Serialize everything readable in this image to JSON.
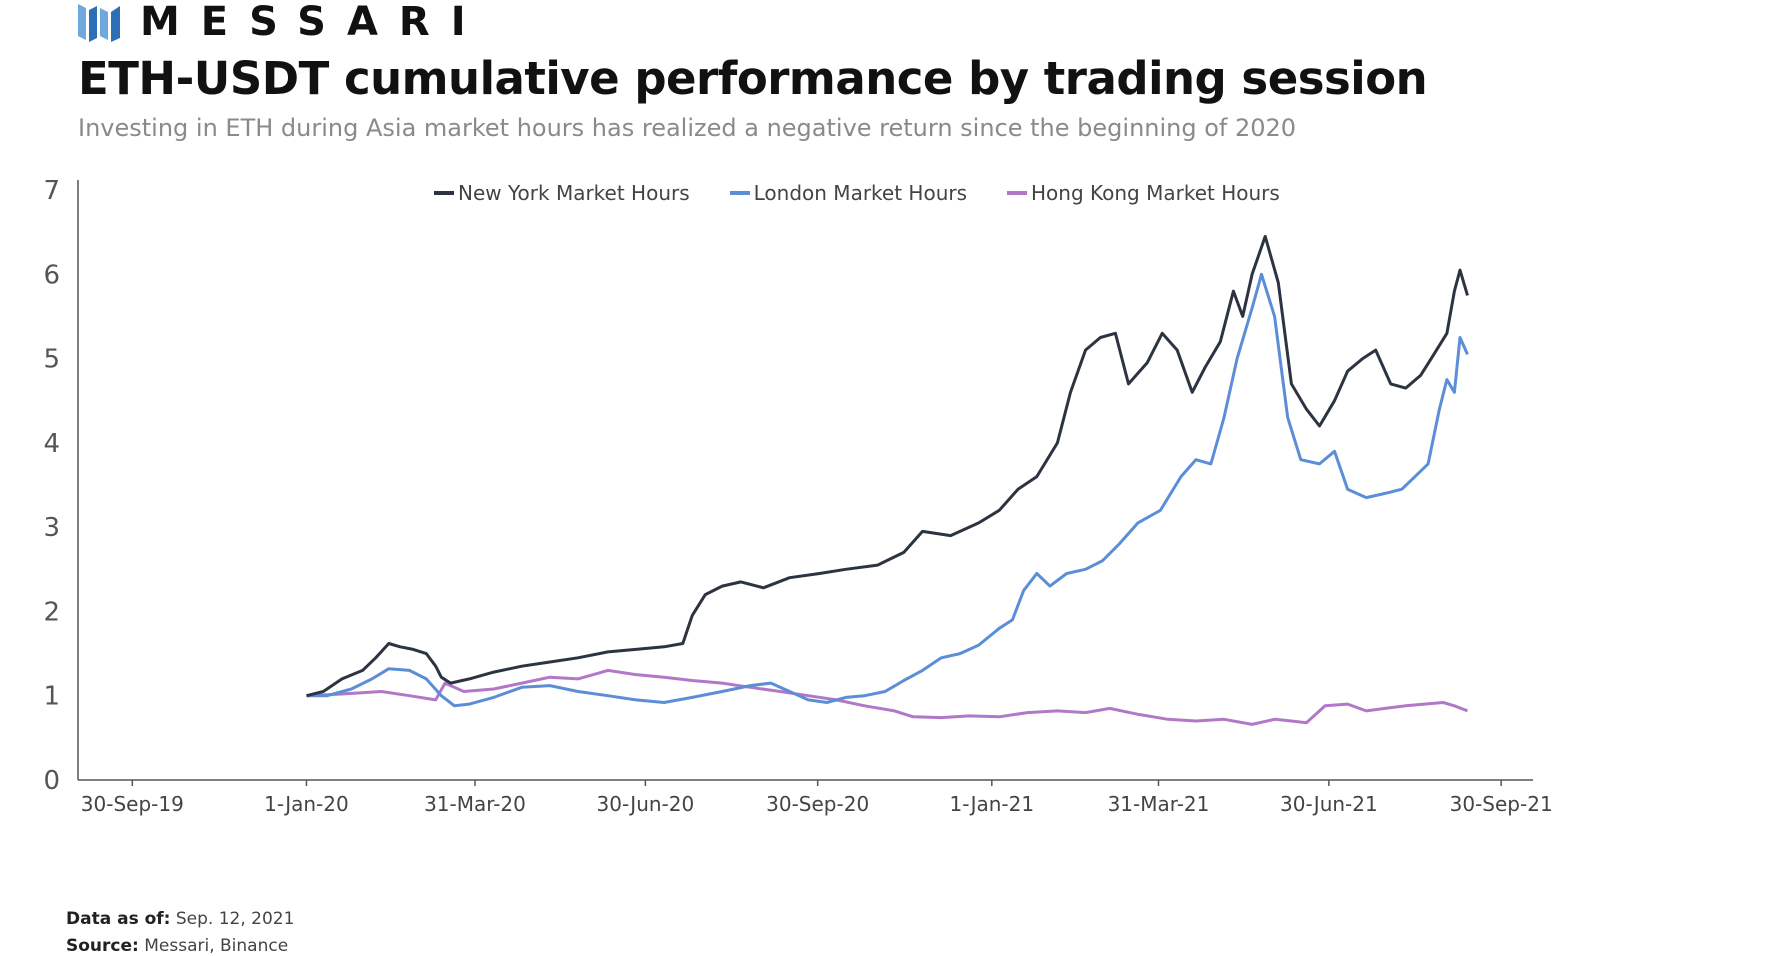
{
  "brand": {
    "name": "MESSARI",
    "colors": {
      "logo_dark": "#2c6fb7",
      "logo_light": "#6fa8dc"
    }
  },
  "header": {
    "title": "ETH-USDT cumulative performance by trading session",
    "subtitle": "Investing in ETH during Asia market hours has realized a negative return since the beginning of 2020"
  },
  "footer": {
    "data_as_of_label": "Data as of:",
    "data_as_of_value": "Sep. 12, 2021",
    "source_label": "Source:",
    "source_value": "Messari, Binance"
  },
  "chart_data": {
    "type": "line",
    "title": "",
    "xlabel": "",
    "ylabel": "",
    "ylim": [
      0,
      7
    ],
    "yticks": [
      "0",
      "1",
      "2",
      "3",
      "4",
      "5",
      "6",
      "7"
    ],
    "xlim": [
      "2019-09-01",
      "2021-10-17"
    ],
    "xticks": [
      {
        "label": "30-Sep-19",
        "date": "2019-09-30"
      },
      {
        "label": "1-Jan-20",
        "date": "2020-01-01"
      },
      {
        "label": "31-Mar-20",
        "date": "2020-03-31"
      },
      {
        "label": "30-Jun-20",
        "date": "2020-06-30"
      },
      {
        "label": "30-Sep-20",
        "date": "2020-09-30"
      },
      {
        "label": "1-Jan-21",
        "date": "2021-01-01"
      },
      {
        "label": "31-Mar-21",
        "date": "2021-03-31"
      },
      {
        "label": "30-Jun-21",
        "date": "2021-06-30"
      },
      {
        "label": "30-Sep-21",
        "date": "2021-09-30"
      }
    ],
    "grid": false,
    "legend_position": "top",
    "series": [
      {
        "name": "New York Market Hours",
        "color": "#2b3440",
        "points": [
          [
            "2020-01-01",
            1.0
          ],
          [
            "2020-01-10",
            1.05
          ],
          [
            "2020-01-20",
            1.2
          ],
          [
            "2020-01-31",
            1.3
          ],
          [
            "2020-02-07",
            1.45
          ],
          [
            "2020-02-14",
            1.62
          ],
          [
            "2020-02-20",
            1.58
          ],
          [
            "2020-02-27",
            1.55
          ],
          [
            "2020-03-05",
            1.5
          ],
          [
            "2020-03-10",
            1.35
          ],
          [
            "2020-03-13",
            1.22
          ],
          [
            "2020-03-18",
            1.15
          ],
          [
            "2020-03-28",
            1.2
          ],
          [
            "2020-04-10",
            1.28
          ],
          [
            "2020-04-25",
            1.35
          ],
          [
            "2020-05-10",
            1.4
          ],
          [
            "2020-05-25",
            1.45
          ],
          [
            "2020-06-10",
            1.52
          ],
          [
            "2020-06-25",
            1.55
          ],
          [
            "2020-07-10",
            1.58
          ],
          [
            "2020-07-20",
            1.62
          ],
          [
            "2020-07-25",
            1.95
          ],
          [
            "2020-08-01",
            2.2
          ],
          [
            "2020-08-10",
            2.3
          ],
          [
            "2020-08-20",
            2.35
          ],
          [
            "2020-09-01",
            2.28
          ],
          [
            "2020-09-15",
            2.4
          ],
          [
            "2020-10-01",
            2.45
          ],
          [
            "2020-10-15",
            2.5
          ],
          [
            "2020-11-01",
            2.55
          ],
          [
            "2020-11-15",
            2.7
          ],
          [
            "2020-11-25",
            2.95
          ],
          [
            "2020-12-10",
            2.9
          ],
          [
            "2020-12-25",
            3.05
          ],
          [
            "2021-01-05",
            3.2
          ],
          [
            "2021-01-15",
            3.45
          ],
          [
            "2021-01-25",
            3.6
          ],
          [
            "2021-02-05",
            4.0
          ],
          [
            "2021-02-12",
            4.6
          ],
          [
            "2021-02-20",
            5.1
          ],
          [
            "2021-02-28",
            5.25
          ],
          [
            "2021-03-08",
            5.3
          ],
          [
            "2021-03-15",
            4.7
          ],
          [
            "2021-03-25",
            4.95
          ],
          [
            "2021-04-02",
            5.3
          ],
          [
            "2021-04-10",
            5.1
          ],
          [
            "2021-04-18",
            4.6
          ],
          [
            "2021-04-25",
            4.9
          ],
          [
            "2021-05-03",
            5.2
          ],
          [
            "2021-05-10",
            5.8
          ],
          [
            "2021-05-15",
            5.5
          ],
          [
            "2021-05-20",
            6.0
          ],
          [
            "2021-05-27",
            6.45
          ],
          [
            "2021-06-03",
            5.9
          ],
          [
            "2021-06-10",
            4.7
          ],
          [
            "2021-06-18",
            4.4
          ],
          [
            "2021-06-25",
            4.2
          ],
          [
            "2021-07-03",
            4.5
          ],
          [
            "2021-07-10",
            4.85
          ],
          [
            "2021-07-18",
            5.0
          ],
          [
            "2021-07-25",
            5.1
          ],
          [
            "2021-08-02",
            4.7
          ],
          [
            "2021-08-10",
            4.65
          ],
          [
            "2021-08-18",
            4.8
          ],
          [
            "2021-08-25",
            5.05
          ],
          [
            "2021-09-01",
            5.3
          ],
          [
            "2021-09-05",
            5.8
          ],
          [
            "2021-09-08",
            6.05
          ],
          [
            "2021-09-12",
            5.75
          ]
        ]
      },
      {
        "name": "London Market Hours",
        "color": "#5b8ed6",
        "points": [
          [
            "2020-01-01",
            1.0
          ],
          [
            "2020-01-12",
            1.0
          ],
          [
            "2020-01-25",
            1.08
          ],
          [
            "2020-02-05",
            1.2
          ],
          [
            "2020-02-14",
            1.32
          ],
          [
            "2020-02-25",
            1.3
          ],
          [
            "2020-03-05",
            1.2
          ],
          [
            "2020-03-13",
            1.0
          ],
          [
            "2020-03-20",
            0.88
          ],
          [
            "2020-03-28",
            0.9
          ],
          [
            "2020-04-10",
            0.98
          ],
          [
            "2020-04-25",
            1.1
          ],
          [
            "2020-05-10",
            1.12
          ],
          [
            "2020-05-25",
            1.05
          ],
          [
            "2020-06-10",
            1.0
          ],
          [
            "2020-06-25",
            0.95
          ],
          [
            "2020-07-10",
            0.92
          ],
          [
            "2020-07-25",
            0.98
          ],
          [
            "2020-08-10",
            1.05
          ],
          [
            "2020-08-25",
            1.12
          ],
          [
            "2020-09-05",
            1.15
          ],
          [
            "2020-09-15",
            1.05
          ],
          [
            "2020-09-25",
            0.95
          ],
          [
            "2020-10-05",
            0.92
          ],
          [
            "2020-10-15",
            0.98
          ],
          [
            "2020-10-25",
            1.0
          ],
          [
            "2020-11-05",
            1.05
          ],
          [
            "2020-11-15",
            1.18
          ],
          [
            "2020-11-25",
            1.3
          ],
          [
            "2020-12-05",
            1.45
          ],
          [
            "2020-12-15",
            1.5
          ],
          [
            "2020-12-25",
            1.6
          ],
          [
            "2021-01-05",
            1.8
          ],
          [
            "2021-01-12",
            1.9
          ],
          [
            "2021-01-18",
            2.25
          ],
          [
            "2021-01-25",
            2.45
          ],
          [
            "2021-02-01",
            2.3
          ],
          [
            "2021-02-10",
            2.45
          ],
          [
            "2021-02-20",
            2.5
          ],
          [
            "2021-03-01",
            2.6
          ],
          [
            "2021-03-10",
            2.8
          ],
          [
            "2021-03-20",
            3.05
          ],
          [
            "2021-04-01",
            3.2
          ],
          [
            "2021-04-12",
            3.6
          ],
          [
            "2021-04-20",
            3.8
          ],
          [
            "2021-04-28",
            3.75
          ],
          [
            "2021-05-05",
            4.3
          ],
          [
            "2021-05-12",
            5.0
          ],
          [
            "2021-05-20",
            5.6
          ],
          [
            "2021-05-25",
            6.0
          ],
          [
            "2021-06-01",
            5.5
          ],
          [
            "2021-06-08",
            4.3
          ],
          [
            "2021-06-15",
            3.8
          ],
          [
            "2021-06-25",
            3.75
          ],
          [
            "2021-07-03",
            3.9
          ],
          [
            "2021-07-10",
            3.45
          ],
          [
            "2021-07-20",
            3.35
          ],
          [
            "2021-07-30",
            3.4
          ],
          [
            "2021-08-08",
            3.45
          ],
          [
            "2021-08-15",
            3.6
          ],
          [
            "2021-08-22",
            3.75
          ],
          [
            "2021-08-28",
            4.4
          ],
          [
            "2021-09-01",
            4.75
          ],
          [
            "2021-09-05",
            4.6
          ],
          [
            "2021-09-08",
            5.25
          ],
          [
            "2021-09-12",
            5.05
          ]
        ]
      },
      {
        "name": "Hong Kong Market Hours",
        "color": "#b278c8",
        "points": [
          [
            "2020-01-01",
            1.0
          ],
          [
            "2020-01-20",
            1.02
          ],
          [
            "2020-02-10",
            1.05
          ],
          [
            "2020-02-25",
            1.0
          ],
          [
            "2020-03-10",
            0.95
          ],
          [
            "2020-03-15",
            1.15
          ],
          [
            "2020-03-25",
            1.05
          ],
          [
            "2020-04-10",
            1.08
          ],
          [
            "2020-04-25",
            1.15
          ],
          [
            "2020-05-10",
            1.22
          ],
          [
            "2020-05-25",
            1.2
          ],
          [
            "2020-06-10",
            1.3
          ],
          [
            "2020-06-25",
            1.25
          ],
          [
            "2020-07-10",
            1.22
          ],
          [
            "2020-07-25",
            1.18
          ],
          [
            "2020-08-10",
            1.15
          ],
          [
            "2020-08-25",
            1.1
          ],
          [
            "2020-09-10",
            1.05
          ],
          [
            "2020-09-25",
            1.0
          ],
          [
            "2020-10-10",
            0.95
          ],
          [
            "2020-10-25",
            0.88
          ],
          [
            "2020-11-10",
            0.82
          ],
          [
            "2020-11-20",
            0.75
          ],
          [
            "2020-12-05",
            0.74
          ],
          [
            "2020-12-20",
            0.76
          ],
          [
            "2021-01-05",
            0.75
          ],
          [
            "2021-01-20",
            0.8
          ],
          [
            "2021-02-05",
            0.82
          ],
          [
            "2021-02-20",
            0.8
          ],
          [
            "2021-03-05",
            0.85
          ],
          [
            "2021-03-20",
            0.78
          ],
          [
            "2021-04-05",
            0.72
          ],
          [
            "2021-04-20",
            0.7
          ],
          [
            "2021-05-05",
            0.72
          ],
          [
            "2021-05-20",
            0.66
          ],
          [
            "2021-06-01",
            0.72
          ],
          [
            "2021-06-10",
            0.7
          ],
          [
            "2021-06-18",
            0.68
          ],
          [
            "2021-06-28",
            0.88
          ],
          [
            "2021-07-10",
            0.9
          ],
          [
            "2021-07-20",
            0.82
          ],
          [
            "2021-07-30",
            0.85
          ],
          [
            "2021-08-10",
            0.88
          ],
          [
            "2021-08-20",
            0.9
          ],
          [
            "2021-08-30",
            0.92
          ],
          [
            "2021-09-05",
            0.88
          ],
          [
            "2021-09-12",
            0.82
          ]
        ]
      }
    ]
  }
}
